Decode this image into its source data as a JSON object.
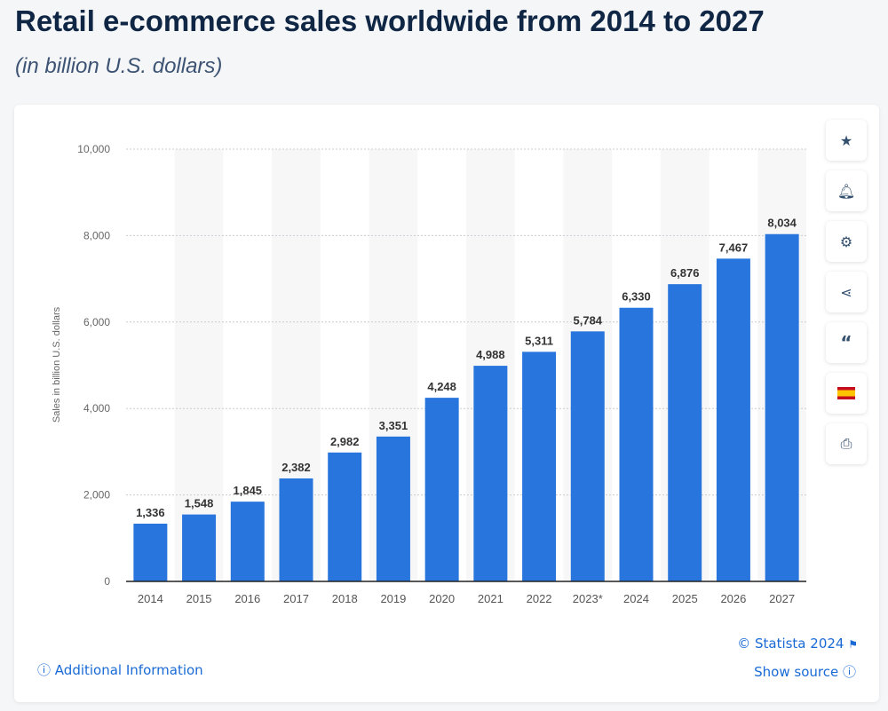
{
  "title": "Retail e-commerce sales worldwide from 2014 to 2027",
  "subtitle": "(in billion U.S. dollars)",
  "chart_data": {
    "type": "bar",
    "categories": [
      "2014",
      "2015",
      "2016",
      "2017",
      "2018",
      "2019",
      "2020",
      "2021",
      "2022",
      "2023*",
      "2024",
      "2025",
      "2026",
      "2027"
    ],
    "values": [
      1336,
      1548,
      1845,
      2382,
      2982,
      3351,
      4248,
      4988,
      5311,
      5784,
      6330,
      6876,
      7467,
      8034
    ],
    "data_labels": [
      "1,336",
      "1,548",
      "1,845",
      "2,382",
      "2,982",
      "3,351",
      "4,248",
      "4,988",
      "5,311",
      "5,784",
      "6,330",
      "6,876",
      "7,467",
      "8,034"
    ],
    "ylabel": "Sales in billion U.S. dollars",
    "ylim": [
      0,
      10000
    ],
    "yticks": [
      0,
      2000,
      4000,
      6000,
      8000,
      10000
    ],
    "ytick_labels": [
      "0",
      "2,000",
      "4,000",
      "6,000",
      "8,000",
      "10,000"
    ],
    "grid": true,
    "bar_color": "#2876dd"
  },
  "sidebar": [
    "star-icon",
    "bell-icon",
    "gear-icon",
    "share-icon",
    "quote-icon",
    "spain-flag-icon",
    "print-icon"
  ],
  "footer": {
    "copyright": "© Statista 2024",
    "additional_info": "Additional Information",
    "show_source": "Show source"
  }
}
